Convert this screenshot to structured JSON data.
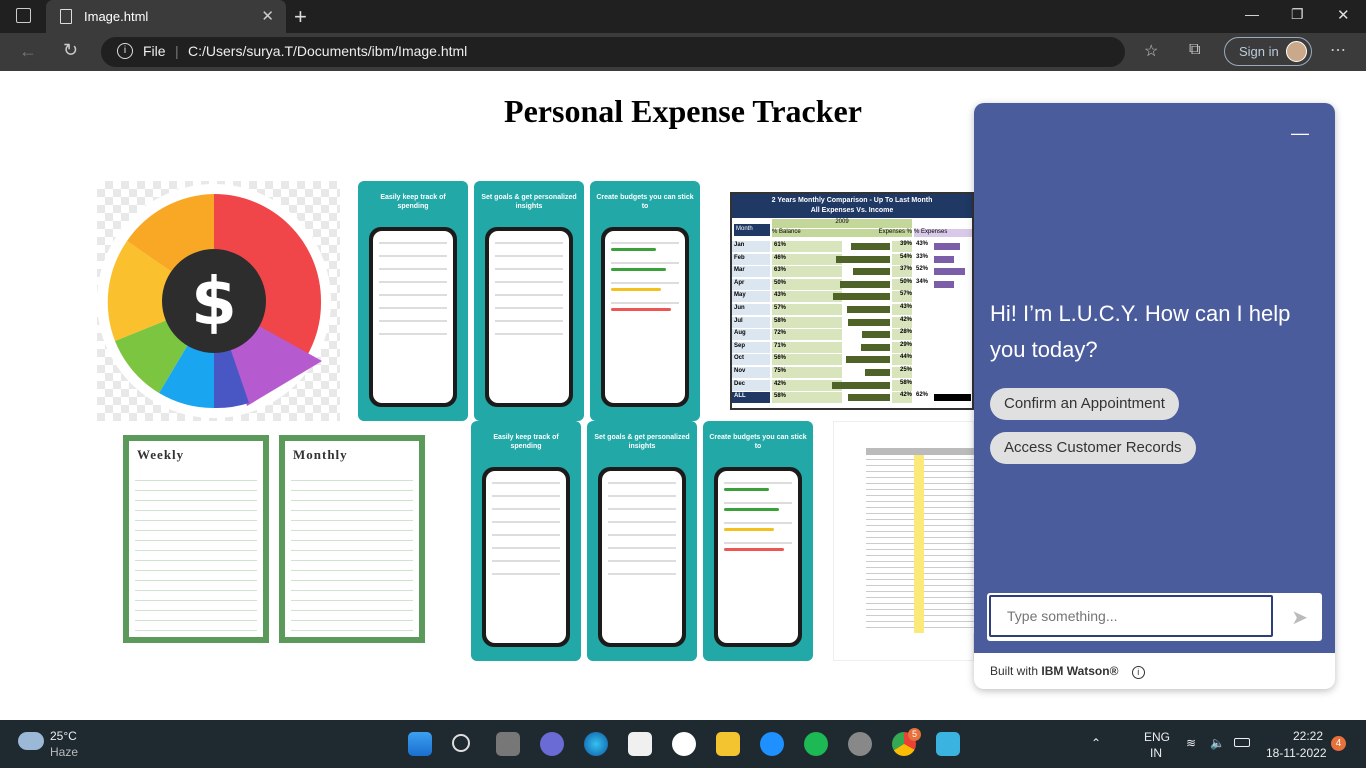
{
  "browser": {
    "tab_title": "Image.html",
    "close_tab": "✕",
    "new_tab": "+",
    "address_label": "File",
    "url": "C:/Users/surya.T/Documents/ibm/Image.html",
    "sign_in": "Sign in"
  },
  "page": {
    "title": "Personal Expense Tracker",
    "app_cards": [
      {
        "caption": "Easily keep track of spending"
      },
      {
        "caption": "Set goals & get personalized insights"
      },
      {
        "caption": "Create budgets you can stick to"
      },
      {
        "caption": "Easily keep track of spending"
      },
      {
        "caption": "Set goals & get personalized insights"
      },
      {
        "caption": "Create budgets you can stick to"
      }
    ],
    "comparison_sheet": {
      "title": "2 Years Monthly Comparison - Up To Last Month",
      "subtitle": "All Expenses Vs. Income",
      "year": "2009",
      "col_month": "Month",
      "col_balance": "% Balance",
      "col_expenses": "Expenses %",
      "col_expenses2": "% Expenses",
      "rows": [
        {
          "m": "Jan",
          "b": "61%",
          "e": "39%",
          "e2": "43%"
        },
        {
          "m": "Feb",
          "b": "46%",
          "e": "54%",
          "e2": "33%"
        },
        {
          "m": "Mar",
          "b": "63%",
          "e": "37%",
          "e2": "52%"
        },
        {
          "m": "Apr",
          "b": "50%",
          "e": "50%",
          "e2": "34%"
        },
        {
          "m": "May",
          "b": "43%",
          "e": "57%",
          "e2": ""
        },
        {
          "m": "Jun",
          "b": "57%",
          "e": "43%",
          "e2": ""
        },
        {
          "m": "Jul",
          "b": "58%",
          "e": "42%",
          "e2": ""
        },
        {
          "m": "Aug",
          "b": "72%",
          "e": "28%",
          "e2": ""
        },
        {
          "m": "Sep",
          "b": "71%",
          "e": "29%",
          "e2": ""
        },
        {
          "m": "Oct",
          "b": "56%",
          "e": "44%",
          "e2": ""
        },
        {
          "m": "Nov",
          "b": "75%",
          "e": "25%",
          "e2": ""
        },
        {
          "m": "Dec",
          "b": "42%",
          "e": "58%",
          "e2": ""
        },
        {
          "m": "ALL",
          "b": "58%",
          "e": "42%",
          "e2": "62%"
        }
      ]
    },
    "planners": [
      {
        "title": "Weekly"
      },
      {
        "title": "Monthly"
      }
    ]
  },
  "chatbot": {
    "minimize": "—",
    "greeting": "Hi! I’m L.U.C.Y. How can I help you today?",
    "options": [
      "Confirm an Appointment",
      "Access Customer Records"
    ],
    "input_placeholder": "Type something...",
    "footer_prefix": "Built with ",
    "footer_brand": "IBM Watson®"
  },
  "taskbar": {
    "weather_temp": "25°C",
    "weather_desc": "Haze",
    "lang": "ENG",
    "region": "IN",
    "time": "22:22",
    "date": "18-11-2022",
    "notifications": "4",
    "chrome_badge": "5"
  }
}
